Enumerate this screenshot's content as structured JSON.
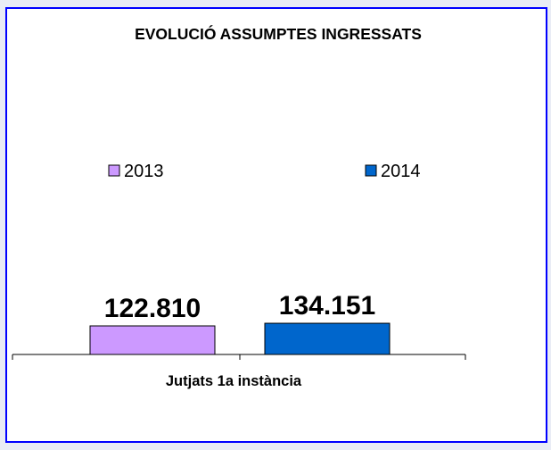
{
  "chart_data": {
    "type": "bar",
    "title": "EVOLUCIÓ ASSUMPTES INGRESSATS",
    "categories": [
      "Jutjats 1a instància"
    ],
    "series": [
      {
        "name": "2013",
        "values": [
          122810
        ],
        "label": "122.810",
        "color": "#cc99ff"
      },
      {
        "name": "2014",
        "values": [
          134151
        ],
        "label": "134.151",
        "color": "#0066cc"
      }
    ],
    "legend_position": "top",
    "grid": false
  }
}
